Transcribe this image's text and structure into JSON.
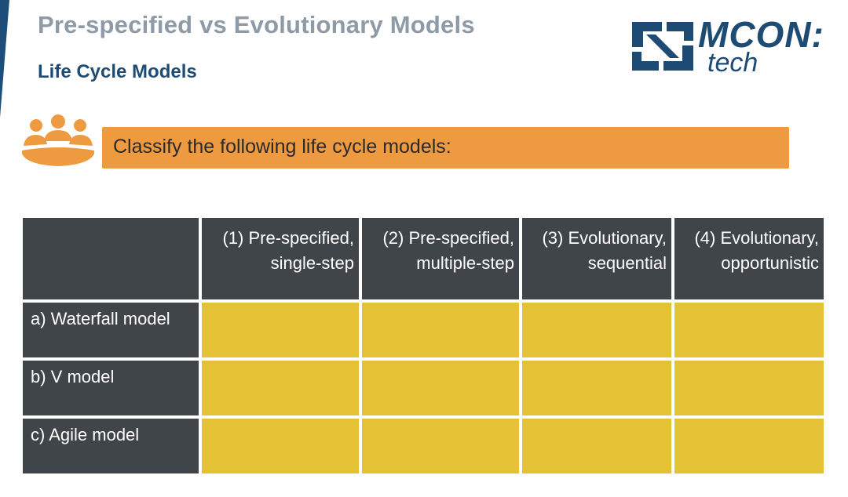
{
  "slide": {
    "title": "Pre-specified vs Evolutionary Models",
    "subtitle": "Life Cycle Models"
  },
  "logo": {
    "word": "MCON:",
    "sub": "tech"
  },
  "task": {
    "icon": "group-people-icon",
    "text": "Classify the following life cycle models:"
  },
  "table": {
    "columns": [
      {
        "line1": "(1)  Pre-specified,",
        "line2": "single-step"
      },
      {
        "line1": "(2)  Pre-specified,",
        "line2": "multiple-step"
      },
      {
        "line1": "(3)  Evolutionary,",
        "line2": "sequential"
      },
      {
        "line1": "(4) Evolutionary,",
        "line2": "opportunistic"
      }
    ],
    "rows": [
      {
        "label": "a) Waterfall model"
      },
      {
        "label": "b) V model"
      },
      {
        "label": "c) Agile model"
      }
    ]
  },
  "colors": {
    "title": "#8e9aa6",
    "subtitle": "#1e4b73",
    "banner": "#ee9a41",
    "header_bg": "#404549",
    "answer_cell": "#e4c135"
  }
}
